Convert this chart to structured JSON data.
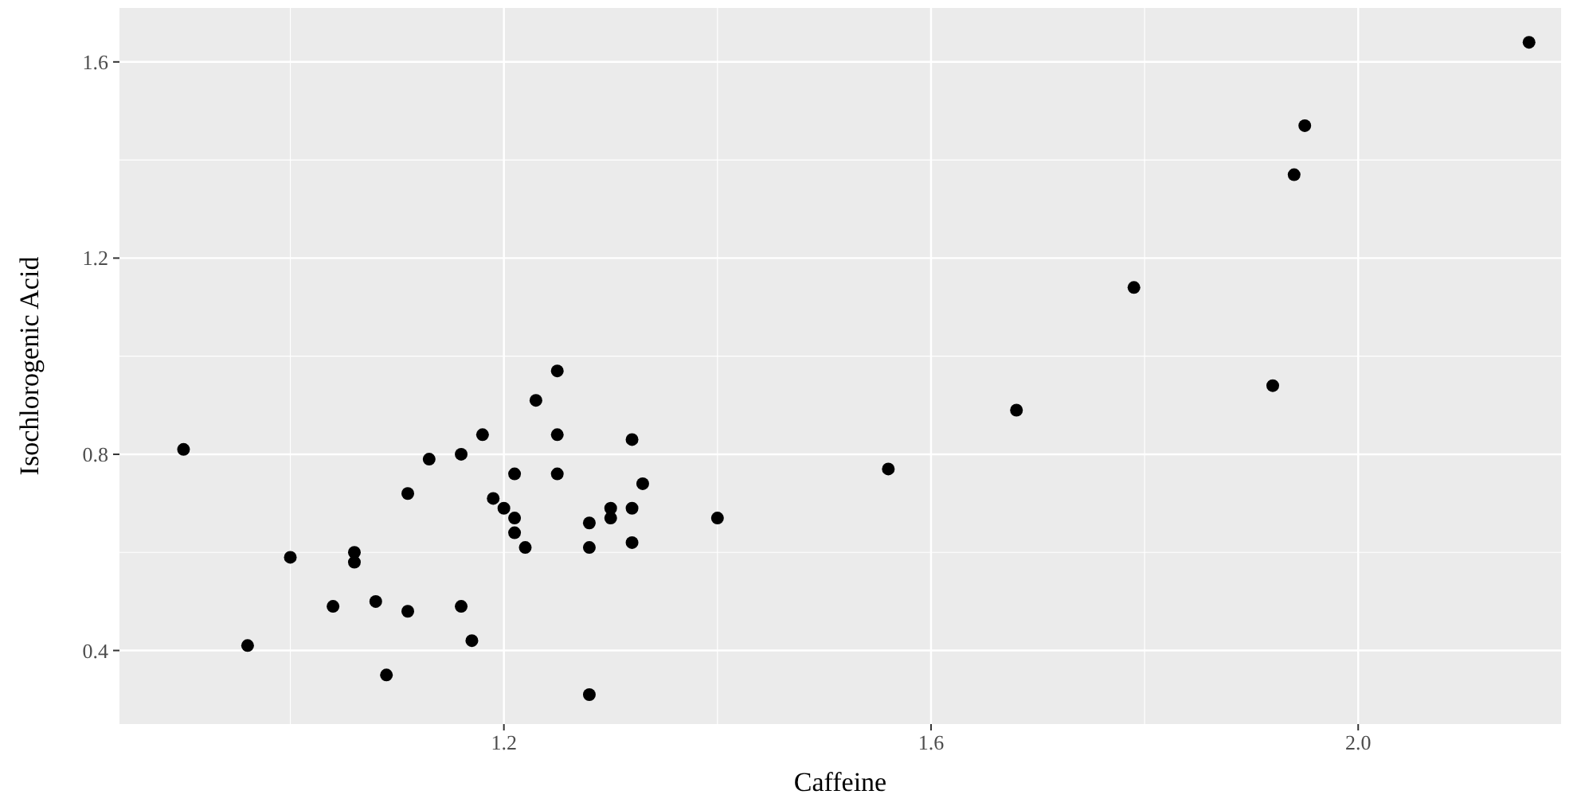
{
  "chart_data": {
    "type": "scatter",
    "xlabel": "Caffeine",
    "ylabel": "Isochlorogenic Acid",
    "x": [
      0.9,
      0.96,
      1.0,
      1.04,
      1.06,
      1.06,
      1.08,
      1.09,
      1.11,
      1.11,
      1.13,
      1.16,
      1.16,
      1.17,
      1.18,
      1.19,
      1.2,
      1.21,
      1.21,
      1.21,
      1.22,
      1.23,
      1.25,
      1.25,
      1.25,
      1.28,
      1.28,
      1.28,
      1.3,
      1.3,
      1.32,
      1.32,
      1.32,
      1.33,
      1.4,
      1.56,
      1.68,
      1.79,
      1.92,
      1.94,
      1.95,
      2.16
    ],
    "values": [
      0.81,
      0.41,
      0.59,
      0.49,
      0.6,
      0.58,
      0.5,
      0.35,
      0.72,
      0.48,
      0.79,
      0.49,
      0.8,
      0.42,
      0.84,
      0.71,
      0.69,
      0.76,
      0.67,
      0.64,
      0.61,
      0.91,
      0.97,
      0.84,
      0.76,
      0.66,
      0.61,
      0.31,
      0.69,
      0.67,
      0.83,
      0.69,
      0.62,
      0.74,
      0.67,
      0.77,
      0.89,
      1.14,
      0.94,
      1.37,
      1.47,
      1.64
    ],
    "color": "#000000",
    "marker": "circle",
    "xlim": [
      0.84,
      2.19
    ],
    "ylim": [
      0.25,
      1.71
    ],
    "xticks": [
      1.2,
      1.6,
      {
        "value": 2,
        "label": "2.0"
      }
    ],
    "yticks": [
      0.4,
      0.8,
      1.2,
      1.6
    ],
    "grid": true
  }
}
